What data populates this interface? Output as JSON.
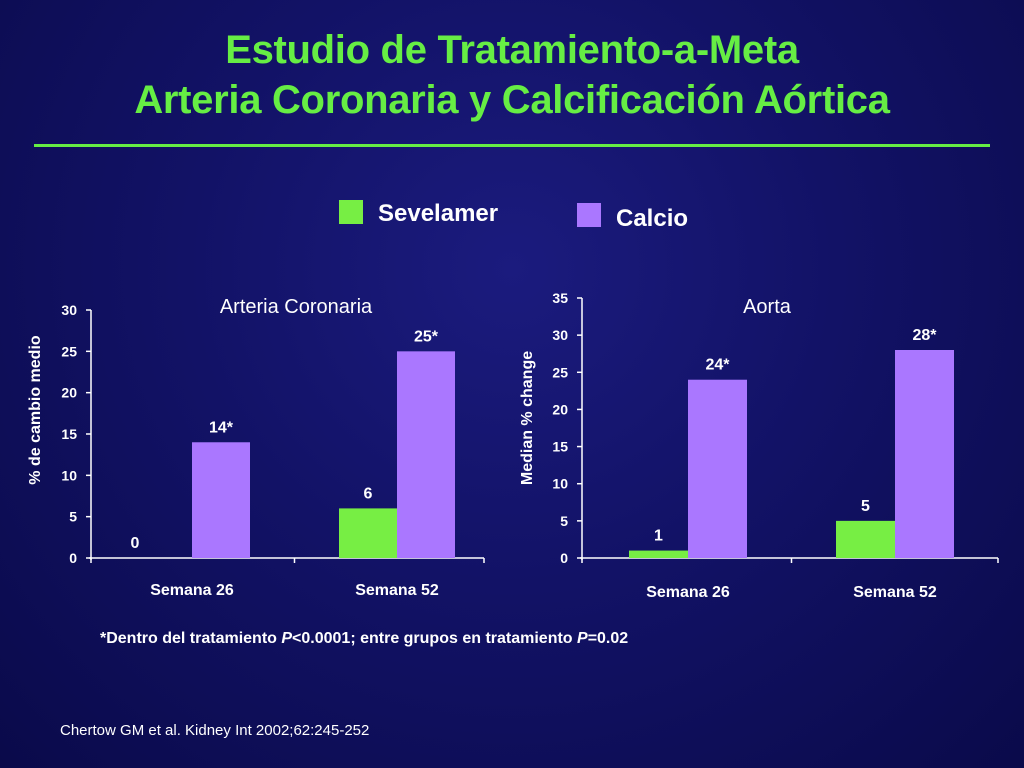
{
  "slide": {
    "title_line1": "Estudio de Tratamiento-a-Meta",
    "title_line2": "Arteria Coronaria y Calcificación Aórtica",
    "footnote_part1": "*Dentro del tratamiento ",
    "footnote_p1": "P",
    "footnote_part2": "<0.0001; entre grupos en tratamiento ",
    "footnote_p2": "P",
    "footnote_part3": "=0.02",
    "citation": "Chertow GM et al. Kidney Int 2002;62:245-252"
  },
  "legend": [
    {
      "name": "Sevelamer",
      "color": "#77ee44"
    },
    {
      "name": "Calcio",
      "color": "#aa77ff"
    }
  ],
  "chart_data": [
    {
      "type": "bar",
      "title": "Arteria Coronaria",
      "ylabel": "% de cambio medio",
      "xlabel": "",
      "categories": [
        "Semana 26",
        "Semana 52"
      ],
      "ylim": [
        0,
        30
      ],
      "yticks": [
        0,
        5,
        10,
        15,
        20,
        25,
        30
      ],
      "grid": false,
      "legend_position": "top",
      "series": [
        {
          "name": "Sevelamer",
          "color": "#77ee44",
          "values": [
            0,
            6
          ],
          "labels": [
            "0",
            "6"
          ]
        },
        {
          "name": "Calcio",
          "color": "#aa77ff",
          "values": [
            14,
            25
          ],
          "labels": [
            "14*",
            "25*"
          ]
        }
      ]
    },
    {
      "type": "bar",
      "title": "Aorta",
      "ylabel": "Median % change",
      "xlabel": "",
      "categories": [
        "Semana 26",
        "Semana 52"
      ],
      "ylim": [
        0,
        35
      ],
      "yticks": [
        0,
        5,
        10,
        15,
        20,
        25,
        30,
        35
      ],
      "grid": false,
      "legend_position": "top",
      "series": [
        {
          "name": "Sevelamer",
          "color": "#77ee44",
          "values": [
            1,
            5
          ],
          "labels": [
            "1",
            "5"
          ]
        },
        {
          "name": "Calcio",
          "color": "#aa77ff",
          "values": [
            24,
            28
          ],
          "labels": [
            "24*",
            "28*"
          ]
        }
      ]
    }
  ]
}
